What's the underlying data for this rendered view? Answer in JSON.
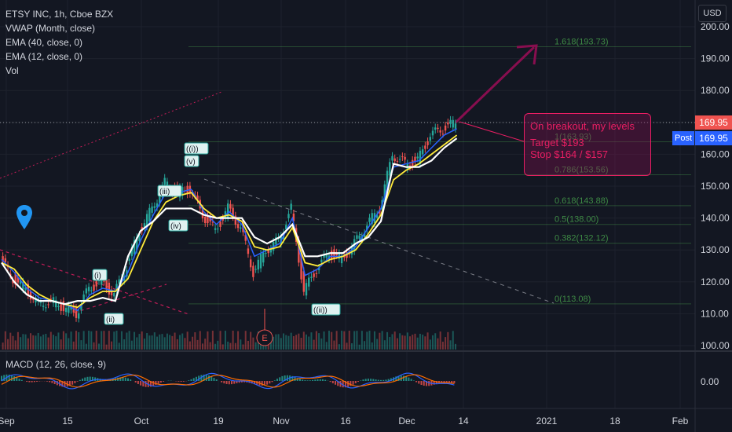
{
  "legend": {
    "symbol": "ETSY INC, 1h, Cboe BZX",
    "vwap": "VWAP (Month, close)",
    "ema40": "EMA (40, close, 0)",
    "ema12": "EMA (12, close, 0)",
    "vol": "Vol"
  },
  "macd_label": "MACD (12, 26, close, 9)",
  "currency_button": "USD",
  "price_tags": {
    "last": "169.95",
    "post": "169.95",
    "post_label": "Post"
  },
  "callout": {
    "line1": "On breakout, my levels",
    "line2": "Target $193",
    "line3": "Stop $164 / $157"
  },
  "colors": {
    "background": "#131722",
    "grid": "#1e222d",
    "up": "#26a69a",
    "down": "#ef5350",
    "ema12": "#2962ff",
    "ema40": "#ffeb3b",
    "vwap": "#ffffff",
    "accent": "#e91e63",
    "fib": "#4caf50"
  },
  "chart_data": {
    "type": "line",
    "price_axis": {
      "ylim": [
        100,
        205
      ],
      "ticks": [
        100,
        110,
        120,
        130,
        140,
        150,
        160,
        170,
        180,
        190,
        200
      ]
    },
    "price_tick_labels": [
      "100.00",
      "110.00",
      "120.00",
      "130.00",
      "140.00",
      "150.00",
      "160.00",
      "170.00",
      "180.00",
      "190.00",
      "200.00"
    ],
    "macd_axis": {
      "ticks": [
        0
      ],
      "tick_labels": [
        "0.00"
      ]
    },
    "x_tick_labels": [
      "Sep",
      "15",
      "Oct",
      "19",
      "Nov",
      "16",
      "Dec",
      "14",
      "2021",
      "18",
      "Feb"
    ],
    "last_price": 169.95,
    "series": [
      {
        "name": "Price",
        "x": [
          0,
          5,
          10,
          15,
          20,
          25,
          30,
          35,
          40,
          45,
          50,
          55,
          60,
          65,
          70,
          75,
          80,
          85,
          90,
          95,
          100,
          105,
          110,
          115,
          120,
          125,
          130,
          135,
          140,
          145,
          150,
          155,
          160,
          165,
          170,
          175,
          180
        ],
        "values": [
          127,
          121,
          118,
          113,
          114,
          112,
          110,
          118,
          120,
          116,
          125,
          136,
          143,
          151,
          148,
          149,
          141,
          136,
          143,
          137,
          123,
          130,
          133,
          143,
          117,
          124,
          129,
          127,
          132,
          138,
          143,
          160,
          157,
          158,
          166,
          168,
          170
        ]
      },
      {
        "name": "EMA (12, close, 0)",
        "values": [
          127,
          123,
          118,
          115,
          114,
          113,
          111,
          116,
          118,
          117,
          123,
          133,
          141,
          148,
          148,
          149,
          142,
          138,
          142,
          138,
          128,
          130,
          132,
          140,
          122,
          124,
          128,
          128,
          131,
          137,
          143,
          156,
          157,
          158,
          162,
          166,
          168
        ]
      },
      {
        "name": "EMA (40, close, 0)",
        "values": [
          126,
          124,
          119,
          116,
          114,
          113,
          112,
          115,
          117,
          117,
          121,
          130,
          139,
          145,
          147,
          148,
          143,
          140,
          141,
          139,
          131,
          130,
          131,
          137,
          126,
          125,
          127,
          128,
          130,
          135,
          141,
          152,
          155,
          157,
          160,
          163,
          166
        ]
      },
      {
        "name": "VWAP (Month, close)",
        "values": [
          126,
          120,
          116,
          114,
          114,
          113,
          114,
          114,
          115,
          114,
          128,
          136,
          139,
          143,
          143,
          143,
          141,
          140,
          140,
          140,
          134,
          132,
          134,
          138,
          128,
          128,
          129,
          129,
          132,
          134,
          139,
          157,
          156,
          156,
          158,
          162,
          165
        ]
      }
    ],
    "fib_levels": [
      {
        "label": "1.618(193.73)",
        "value": 193.73
      },
      {
        "label": "1(163.93)",
        "value": 163.93
      },
      {
        "label": "0.786(153.56)",
        "value": 153.56
      },
      {
        "label": "0.618(143.88)",
        "value": 143.88
      },
      {
        "label": "0.5(138.00)",
        "value": 138.0
      },
      {
        "label": "0.382(132.12)",
        "value": 132.12
      },
      {
        "label": "0(113.08)",
        "value": 113.08
      }
    ],
    "wave_labels": [
      "((i))",
      "(v)",
      "(iii)",
      "(iv)",
      "(i)",
      "(ii)",
      "((ii))"
    ],
    "event_marker": "E"
  }
}
